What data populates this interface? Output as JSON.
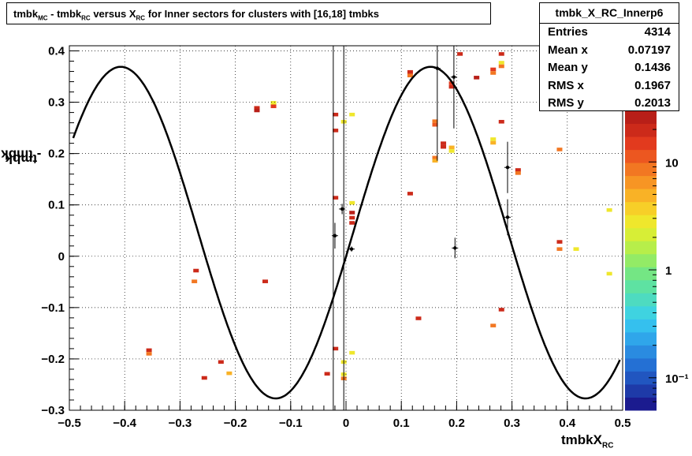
{
  "title": {
    "p1": "tmbk",
    "p1_sub": "MC",
    "p2": " - tmbk",
    "p2_sub": "RC",
    "p3": " versus X",
    "p3_sub": "RC",
    "p4": " for Inner sectors for clusters with [16,18] tmbks"
  },
  "stats": {
    "name": "tmbk_X_RC_Innerp6",
    "rows": [
      {
        "label": "Entries",
        "value": "4314"
      },
      {
        "label": "Mean x",
        "value": "0.07197"
      },
      {
        "label": "Mean y",
        "value": "0.1436"
      },
      {
        "label": "RMS x",
        "value": "0.1967"
      },
      {
        "label": "RMS y",
        "value": "0.2013"
      }
    ]
  },
  "axes": {
    "ylabel_a": "tmbk",
    "ylabel_a_sub": "MC",
    "ylabel_b": " - tmbk",
    "ylabel_b_sub": "RC",
    "xlabel": "tmbkX",
    "xlabel_sub": "RC"
  },
  "chart_data": {
    "type": "heatmap",
    "xlim": [
      -0.5,
      0.5
    ],
    "ylim": [
      -0.3,
      0.41
    ],
    "x_ticks": [
      -0.5,
      -0.4,
      -0.3,
      -0.2,
      -0.1,
      0,
      0.1,
      0.2,
      0.3,
      0.4,
      0.5
    ],
    "x_tick_labels": [
      "−0.5",
      "−0.4",
      "−0.3",
      "−0.2",
      "−0.1",
      "0",
      "0.1",
      "0.2",
      "0.3",
      "0.4",
      "0.5"
    ],
    "y_ticks": [
      -0.3,
      -0.2,
      -0.1,
      0,
      0.1,
      0.2,
      0.3,
      0.4
    ],
    "y_tick_labels": [
      "−0.3",
      "−0.2",
      "−0.1",
      "0",
      "0.1",
      "0.2",
      "0.3",
      "0.4"
    ],
    "grid": true,
    "zscale": "log",
    "zlim": [
      0.05,
      30
    ],
    "z_tick_labels": [
      "10",
      "1",
      "10⁻¹"
    ],
    "palette": [
      "#1b1b8f",
      "#1e3aa8",
      "#2156c0",
      "#2470d4",
      "#2a8be0",
      "#2fa6ea",
      "#35c0ee",
      "#3fd3e0",
      "#4edbc0",
      "#5ee2a2",
      "#74e684",
      "#93eb66",
      "#b7ee4a",
      "#d7ee36",
      "#efe72c",
      "#f7cf28",
      "#f9b226",
      "#f79524",
      "#f27722",
      "#ec5720",
      "#e23a1e",
      "#cc2a1a",
      "#b81f18"
    ],
    "cells": [
      {
        "x": -0.161,
        "y": 0.289,
        "z": 20
      },
      {
        "x": -0.161,
        "y": 0.284,
        "z": 30
      },
      {
        "x": -0.131,
        "y": 0.299,
        "z": 3
      },
      {
        "x": -0.131,
        "y": 0.292,
        "z": 15
      },
      {
        "x": -0.356,
        "y": -0.183,
        "z": 20
      },
      {
        "x": -0.356,
        "y": -0.19,
        "z": 8
      },
      {
        "x": -0.271,
        "y": -0.028,
        "z": 20
      },
      {
        "x": -0.274,
        "y": -0.049,
        "z": 8
      },
      {
        "x": -0.146,
        "y": -0.049,
        "z": 20
      },
      {
        "x": -0.226,
        "y": -0.206,
        "z": 20
      },
      {
        "x": -0.211,
        "y": -0.228,
        "z": 5
      },
      {
        "x": -0.256,
        "y": -0.237,
        "z": 20
      },
      {
        "x": -0.034,
        "y": -0.229,
        "z": 20
      },
      {
        "x": -0.019,
        "y": 0.276,
        "z": 20
      },
      {
        "x": -0.019,
        "y": 0.245,
        "z": 20
      },
      {
        "x": -0.019,
        "y": 0.114,
        "z": 20
      },
      {
        "x": -0.019,
        "y": -0.18,
        "z": 20
      },
      {
        "x": -0.004,
        "y": 0.262,
        "z": 3
      },
      {
        "x": -0.004,
        "y": -0.206,
        "z": 3
      },
      {
        "x": -0.004,
        "y": -0.23,
        "z": 3
      },
      {
        "x": -0.004,
        "y": -0.238,
        "z": 8
      },
      {
        "x": 0.011,
        "y": 0.276,
        "z": 3
      },
      {
        "x": 0.011,
        "y": 0.104,
        "z": 3
      },
      {
        "x": 0.011,
        "y": 0.085,
        "z": 30
      },
      {
        "x": 0.011,
        "y": 0.075,
        "z": 20
      },
      {
        "x": 0.011,
        "y": 0.065,
        "z": 20
      },
      {
        "x": 0.011,
        "y": -0.188,
        "z": 3
      },
      {
        "x": 0.116,
        "y": 0.359,
        "z": 20
      },
      {
        "x": 0.116,
        "y": 0.352,
        "z": 8
      },
      {
        "x": 0.116,
        "y": 0.122,
        "z": 20
      },
      {
        "x": 0.131,
        "y": -0.121,
        "z": 20
      },
      {
        "x": 0.161,
        "y": 0.263,
        "z": 8
      },
      {
        "x": 0.161,
        "y": 0.256,
        "z": 10
      },
      {
        "x": 0.161,
        "y": 0.192,
        "z": 8
      },
      {
        "x": 0.161,
        "y": 0.186,
        "z": 5
      },
      {
        "x": 0.176,
        "y": 0.22,
        "z": 20
      },
      {
        "x": 0.176,
        "y": 0.213,
        "z": 20
      },
      {
        "x": 0.191,
        "y": 0.212,
        "z": 5
      },
      {
        "x": 0.191,
        "y": 0.205,
        "z": 3
      },
      {
        "x": 0.191,
        "y": 0.337,
        "z": 15
      },
      {
        "x": 0.191,
        "y": 0.33,
        "z": 20
      },
      {
        "x": 0.206,
        "y": 0.394,
        "z": 20
      },
      {
        "x": 0.236,
        "y": 0.348,
        "z": 40
      },
      {
        "x": 0.266,
        "y": 0.364,
        "z": 15
      },
      {
        "x": 0.266,
        "y": 0.357,
        "z": 8
      },
      {
        "x": 0.266,
        "y": 0.228,
        "z": 3
      },
      {
        "x": 0.266,
        "y": 0.221,
        "z": 5
      },
      {
        "x": 0.266,
        "y": -0.135,
        "z": 8
      },
      {
        "x": 0.281,
        "y": 0.394,
        "z": 20
      },
      {
        "x": 0.281,
        "y": 0.377,
        "z": 3
      },
      {
        "x": 0.281,
        "y": 0.37,
        "z": 8
      },
      {
        "x": 0.281,
        "y": 0.262,
        "z": 20
      },
      {
        "x": 0.281,
        "y": -0.104,
        "z": 20
      },
      {
        "x": 0.311,
        "y": 0.168,
        "z": 20
      },
      {
        "x": 0.311,
        "y": 0.162,
        "z": 8
      },
      {
        "x": 0.386,
        "y": 0.208,
        "z": 8
      },
      {
        "x": 0.386,
        "y": 0.028,
        "z": 20
      },
      {
        "x": 0.386,
        "y": 0.014,
        "z": 8
      },
      {
        "x": 0.416,
        "y": 0.014,
        "z": 3
      },
      {
        "x": 0.476,
        "y": 0.09,
        "z": 3
      },
      {
        "x": 0.476,
        "y": -0.034,
        "z": 3
      }
    ],
    "profile_points": [
      {
        "x": -0.02,
        "y": 0.04,
        "ey": 0.025
      },
      {
        "x": -0.007,
        "y": 0.092,
        "ey": 0.01
      },
      {
        "x": 0.01,
        "y": 0.014,
        "ey": 0.005
      },
      {
        "x": 0.165,
        "y": 0.366,
        "ey": 0.18
      },
      {
        "x": 0.195,
        "y": 0.349,
        "ey": 0.1
      },
      {
        "x": 0.197,
        "y": 0.016,
        "ey": 0.02
      },
      {
        "x": 0.292,
        "y": 0.173,
        "ey": 0.05
      },
      {
        "x": 0.292,
        "y": 0.076,
        "ey": 0.035
      }
    ],
    "fit": {
      "type": "sine",
      "amplitude": 0.323,
      "period": 0.56,
      "offset": 0.046,
      "phase_zero_x": -0.0
    }
  }
}
